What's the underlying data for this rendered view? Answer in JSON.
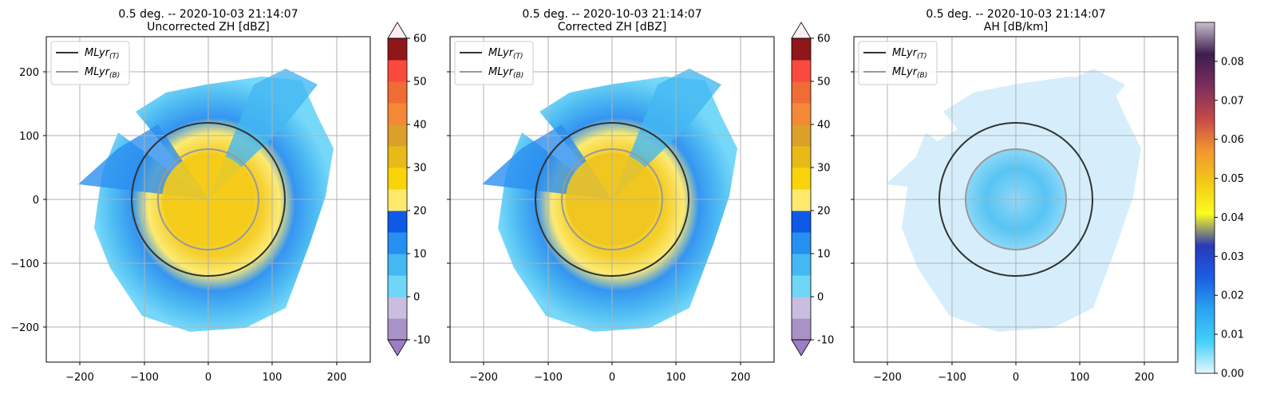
{
  "figure": {
    "panels": [
      {
        "id": "uncorrected",
        "title_line1": "0.5 deg. -- 2020-10-03 21:14:07",
        "title_line2": "Uncorrected ZH [dBZ]"
      },
      {
        "id": "corrected",
        "title_line1": "0.5 deg. -- 2020-10-03 21:14:07",
        "title_line2": "Corrected ZH [dBZ]"
      },
      {
        "id": "ah",
        "title_line1": "0.5 deg. -- 2020-10-03 21:14:07",
        "title_line2": "AH [dB/km]"
      }
    ],
    "legend": {
      "top": "MLyr",
      "top_sub": "(T)",
      "bottom": "MLyr",
      "bottom_sub": "(B)",
      "top_color": "#333333",
      "bottom_color": "#999999"
    }
  },
  "chart_data": [
    {
      "type": "heatmap",
      "title": "0.5 deg. -- 2020-10-03 21:14:07\nUncorrected ZH [dBZ]",
      "xlim": [
        -255,
        255
      ],
      "ylim": [
        -255,
        255
      ],
      "x_ticks": [
        -200,
        -100,
        0,
        100,
        200
      ],
      "y_ticks": [
        -200,
        -100,
        0,
        100,
        200
      ],
      "grid": true,
      "legend_placement": "top-left",
      "legend": [
        "MLyr(T)",
        "MLyr(B)"
      ],
      "melting_layer_rings": {
        "top_radius": 120,
        "bottom_radius": 78
      },
      "colorbar": {
        "ticks": [
          -10,
          0,
          10,
          20,
          30,
          40,
          50,
          60
        ],
        "extend": "both",
        "colors": [
          "#a992c8",
          "#c9bde0",
          "#6fd6f8",
          "#44b8f2",
          "#2590f0",
          "#0e59e6",
          "#fde96b",
          "#f9d40b",
          "#e8ba18",
          "#dba02a",
          "#f48837",
          "#ef6c35",
          "#fa4a3e",
          "#8f1619"
        ],
        "under_color": "#9b7ec3",
        "over_color": "#fbeef2"
      }
    },
    {
      "type": "heatmap",
      "title": "0.5 deg. -- 2020-10-03 21:14:07\nCorrected ZH [dBZ]",
      "xlim": [
        -255,
        255
      ],
      "ylim": [
        -255,
        255
      ],
      "x_ticks": [
        -200,
        -100,
        0,
        100,
        200
      ],
      "y_ticks": [
        -200,
        -100,
        0,
        100,
        200
      ],
      "grid": true,
      "legend_placement": "top-left",
      "legend": [
        "MLyr(T)",
        "MLyr(B)"
      ],
      "melting_layer_rings": {
        "top_radius": 120,
        "bottom_radius": 78
      },
      "colorbar": {
        "ticks": [
          -10,
          0,
          10,
          20,
          30,
          40,
          50,
          60
        ],
        "extend": "both",
        "colors": [
          "#a992c8",
          "#c9bde0",
          "#6fd6f8",
          "#44b8f2",
          "#2590f0",
          "#0e59e6",
          "#fde96b",
          "#f9d40b",
          "#e8ba18",
          "#dba02a",
          "#f48837",
          "#ef6c35",
          "#fa4a3e",
          "#8f1619"
        ],
        "under_color": "#9b7ec3",
        "over_color": "#fbeef2"
      }
    },
    {
      "type": "heatmap",
      "title": "0.5 deg. -- 2020-10-03 21:14:07\nAH [dB/km]",
      "xlim": [
        -255,
        255
      ],
      "ylim": [
        -255,
        255
      ],
      "x_ticks": [
        -200,
        -100,
        0,
        100,
        200
      ],
      "y_ticks": [],
      "grid": true,
      "legend_placement": "top-left",
      "legend": [
        "MLyr(T)",
        "MLyr(B)"
      ],
      "melting_layer_rings": {
        "top_radius": 120,
        "bottom_radius": 78
      },
      "colorbar": {
        "range": [
          0,
          0.09
        ],
        "ticks": [
          "0.00",
          "0.01",
          "0.02",
          "0.03",
          "0.04",
          "0.05",
          "0.06",
          "0.07",
          "0.08"
        ],
        "gradient": [
          "#e5f7fd",
          "#42d0fa",
          "#2aa3f0",
          "#1a5ee3",
          "#2a39b8",
          "#fcfc1e",
          "#f3c818",
          "#f29531",
          "#c44848",
          "#7a2e5e",
          "#3d1e4d",
          "#c9bfcd"
        ]
      }
    }
  ]
}
